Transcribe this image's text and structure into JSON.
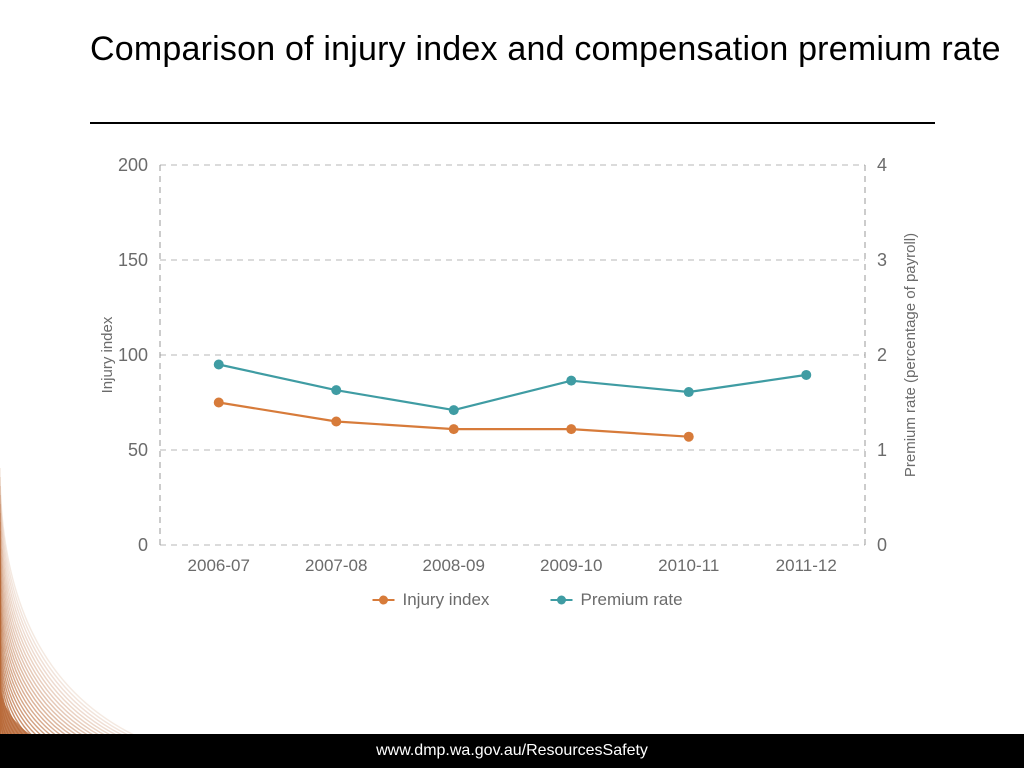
{
  "title": "Comparison of injury index and compensation premium rate",
  "footer_url": "www.dmp.wa.gov.au/ResourcesSafety",
  "chart": {
    "type": "line-dual-axis",
    "categories": [
      "2006-07",
      "2007-08",
      "2008-09",
      "2009-10",
      "2010-11",
      "2011-12"
    ],
    "left_axis": {
      "label": "Injury index",
      "min": 0,
      "max": 200,
      "ticks": [
        0,
        50,
        100,
        150,
        200
      ]
    },
    "right_axis": {
      "label": "Premium rate (percentage of payroll)",
      "min": 0,
      "max": 4,
      "ticks": [
        0,
        1,
        2,
        3,
        4
      ]
    },
    "series": [
      {
        "name": "Injury index",
        "axis": "left",
        "color": "#d77b3a",
        "marker": "circle",
        "marker_size": 5,
        "line_width": 2.2,
        "values": [
          75,
          65,
          61,
          61,
          57,
          null
        ]
      },
      {
        "name": "Premium rate",
        "axis": "right",
        "color": "#3f9ca3",
        "marker": "circle",
        "marker_size": 5,
        "line_width": 2.2,
        "values": [
          1.9,
          1.63,
          1.42,
          1.73,
          1.61,
          1.79
        ]
      }
    ],
    "grid_color": "#b7b7b7",
    "grid_dash": "6,5",
    "axis_line_color": "#9a9a9a",
    "background_color": "#ffffff",
    "label_color": "#6b6b6b",
    "tick_fontsize": 18,
    "xlabel_fontsize": 17,
    "axis_label_fontsize": 15,
    "legend_fontsize": 17
  },
  "swoosh_color": "#b86a39"
}
